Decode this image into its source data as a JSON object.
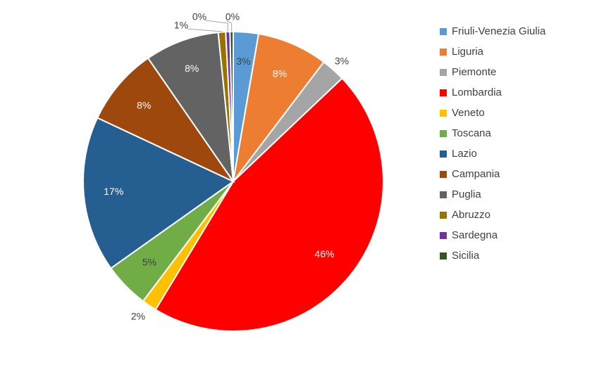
{
  "chart_data": {
    "type": "pie",
    "title": "",
    "legend_position": "right",
    "slices": [
      {
        "label": "Friuli-Venezia Giulia",
        "value": 2.7,
        "display": "3%",
        "color": "#5B9BD5",
        "label_color": "#404040"
      },
      {
        "label": "Liguria",
        "value": 7.6,
        "display": "8%",
        "color": "#ED7D31",
        "label_color": "#ffffff"
      },
      {
        "label": "Piemonte",
        "value": 2.6,
        "display": "3%",
        "color": "#A5A5A5",
        "label_color": "#404040"
      },
      {
        "label": "Lombardia",
        "value": 45.7,
        "display": "46%",
        "color": "#FF0000",
        "label_color": "#ffffff"
      },
      {
        "label": "Veneto",
        "value": 1.6,
        "display": "2%",
        "color": "#FFC000",
        "label_color": "#404040"
      },
      {
        "label": "Toscana",
        "value": 4.9,
        "display": "5%",
        "color": "#70AD47",
        "label_color": "#404040"
      },
      {
        "label": "Lazio",
        "value": 16.8,
        "display": "17%",
        "color": "#255E91",
        "label_color": "#ffffff"
      },
      {
        "label": "Campania",
        "value": 8.4,
        "display": "8%",
        "color": "#9E480E",
        "label_color": "#ffffff"
      },
      {
        "label": "Puglia",
        "value": 8.0,
        "display": "8%",
        "color": "#636363",
        "label_color": "#ffffff"
      },
      {
        "label": "Abruzzo",
        "value": 0.8,
        "display": "1%",
        "color": "#997300",
        "label_color": "#404040"
      },
      {
        "label": "Sardegna",
        "value": 0.45,
        "display": "0%",
        "color": "#7030A0",
        "label_color": "#404040"
      },
      {
        "label": "Sicilia",
        "value": 0.35,
        "display": "0%",
        "color": "#375623",
        "label_color": "#404040"
      }
    ]
  }
}
